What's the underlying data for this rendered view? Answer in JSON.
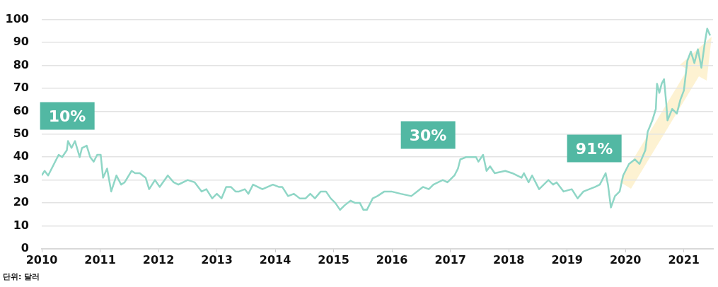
{
  "chart_data": {
    "type": "line",
    "xlim": [
      2010,
      2021.5
    ],
    "xticks": [
      2010,
      2011,
      2012,
      2013,
      2014,
      2015,
      2016,
      2017,
      2018,
      2019,
      2020,
      2021
    ],
    "ylim": [
      0,
      100
    ],
    "yticks": [
      0,
      10,
      20,
      30,
      40,
      50,
      60,
      70,
      80,
      90,
      100
    ],
    "grid": "y",
    "legend": false,
    "marker": "none",
    "line_style": "solid",
    "x": [
      2010.0,
      2010.05,
      2010.11,
      2010.21,
      2010.29,
      2010.35,
      2010.43,
      2010.45,
      2010.51,
      2010.57,
      2010.65,
      2010.69,
      2010.77,
      2010.83,
      2010.89,
      2010.95,
      2011.01,
      2011.05,
      2011.12,
      2011.19,
      2011.28,
      2011.36,
      2011.42,
      2011.54,
      2011.6,
      2011.68,
      2011.78,
      2011.84,
      2011.94,
      2012.02,
      2012.16,
      2012.26,
      2012.34,
      2012.5,
      2012.62,
      2012.74,
      2012.82,
      2012.92,
      2013.0,
      2013.08,
      2013.16,
      2013.24,
      2013.32,
      2013.38,
      2013.48,
      2013.54,
      2013.62,
      2013.78,
      2013.96,
      2014.06,
      2014.12,
      2014.22,
      2014.32,
      2014.42,
      2014.52,
      2014.6,
      2014.68,
      2014.78,
      2014.87,
      2014.95,
      2015.03,
      2015.11,
      2015.19,
      2015.29,
      2015.37,
      2015.45,
      2015.51,
      2015.57,
      2015.67,
      2015.75,
      2015.87,
      2015.99,
      2016.15,
      2016.33,
      2016.43,
      2016.53,
      2016.63,
      2016.71,
      2016.87,
      2016.95,
      2017.07,
      2017.13,
      2017.17,
      2017.27,
      2017.33,
      2017.44,
      2017.48,
      2017.56,
      2017.62,
      2017.68,
      2017.76,
      2017.94,
      2018.06,
      2018.22,
      2018.26,
      2018.34,
      2018.4,
      2018.52,
      2018.68,
      2018.76,
      2018.82,
      2018.94,
      2019.08,
      2019.18,
      2019.28,
      2019.38,
      2019.48,
      2019.56,
      2019.66,
      2019.7,
      2019.75,
      2019.82,
      2019.9,
      2019.96,
      2020.06,
      2020.16,
      2020.24,
      2020.34,
      2020.38,
      2020.46,
      2020.52,
      2020.54,
      2020.58,
      2020.62,
      2020.66,
      2020.7,
      2020.72,
      2020.8,
      2020.88,
      2020.94,
      2021.0,
      2021.06,
      2021.12,
      2021.18,
      2021.24,
      2021.3,
      2021.36,
      2021.4,
      2021.45
    ],
    "series": [
      {
        "color": "#8fd6c6",
        "values": [
          32,
          34,
          32,
          37,
          41,
          40,
          43,
          47,
          44,
          47,
          40,
          44,
          45,
          40,
          38,
          41,
          41,
          31,
          35,
          25,
          32,
          28,
          29,
          34,
          33,
          33,
          31,
          26,
          30,
          27,
          32,
          29,
          28,
          30,
          29,
          25,
          26,
          22,
          24,
          22,
          27,
          27,
          25,
          25,
          26,
          24,
          28,
          26,
          28,
          27,
          27,
          23,
          24,
          22,
          22,
          24,
          22,
          25,
          25,
          22,
          20,
          17,
          19,
          21,
          20,
          20,
          17,
          17,
          22,
          23,
          25,
          25,
          24,
          23,
          25,
          27,
          26,
          28,
          30,
          29,
          32,
          35,
          39,
          40,
          40,
          40,
          38,
          41,
          34,
          36,
          33,
          34,
          33,
          31,
          33,
          29,
          32,
          26,
          30,
          28,
          29,
          25,
          26,
          22,
          25,
          26,
          27,
          28,
          33,
          28,
          18,
          23,
          25,
          32,
          37,
          39,
          37,
          43,
          51,
          56,
          61,
          72,
          68,
          72,
          74,
          63,
          56,
          61,
          59,
          65,
          69,
          82,
          86,
          81,
          87,
          79,
          90,
          96,
          93
        ]
      }
    ],
    "annotations": [
      "10%",
      "30%",
      "91%",
      "단위: 달러"
    ]
  }
}
